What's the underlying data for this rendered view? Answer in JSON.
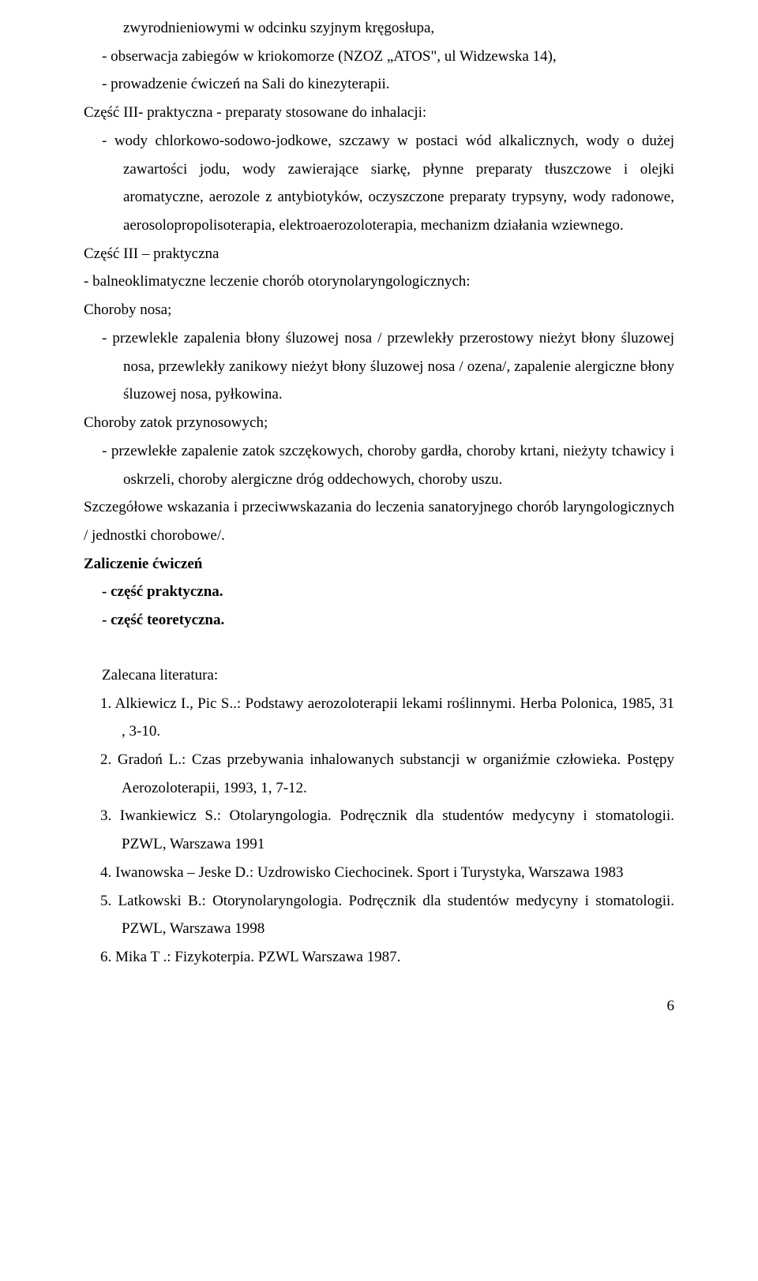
{
  "top": {
    "line1": "zwyrodnieniowymi w odcinku szyjnym kręgosłupa,",
    "bullet2": "-   obserwacja zabiegów w kriokomorze (NZOZ „ATOS\", ul Widzewska 14),",
    "bullet3": "-   prowadzenie ćwiczeń na Sali do kinezyterapii."
  },
  "paraA": "Część III- praktyczna - preparaty stosowane do inhalacji:",
  "paraA_bullet": "-   wody chlorkowo-sodowo-jodkowe, szczawy w postaci wód alkalicznych, wody o dużej zawartości jodu, wody zawierające siarkę, płynne preparaty tłuszczowe i olejki aromatyczne, aerozole z antybiotyków, oczyszczone preparaty trypsyny, wody radonowe, aerosolopropolisoterapia, elektroaerozoloterapia, mechanizm działania wziewnego.",
  "paraB_head": "Część III – praktyczna",
  "paraB_sub": "-  balneoklimatyczne leczenie chorób otorynolaryngologicznych:",
  "paraB_nose_head": "Choroby nosa;",
  "paraB_nose_bullet": "-  przewlekle zapalenia błony śluzowej  nosa / przewlekły przerostowy nieżyt błony śluzowej nosa, przewlekły zanikowy nieżyt błony śluzowej nosa / ozena/, zapalenie alergiczne błony śluzowej nosa, pyłkowina.",
  "paraB_sinus_head": "Choroby zatok przynosowych;",
  "paraB_sinus_bullet": "-  przewlekłe zapalenie zatok szczękowych, choroby gardła, choroby krtani, nieżyty tchawicy i oskrzeli, choroby alergiczne dróg oddechowych, choroby uszu.",
  "paraC": "Szczegółowe wskazania i przeciwwskazania do leczenia sanatoryjnego chorób laryngologicznych / jednostki chorobowe/.",
  "zal_head": "Zaliczenie ćwiczeń",
  "zal_a": "- część praktyczna.",
  "zal_b": "- część teoretyczna.",
  "lit_head": "Zalecana literatura:",
  "lit": {
    "i1": "1.  Alkiewicz I., Pic S..: Podstawy aerozoloterapii lekami roślinnymi. Herba Polonica, 1985, 31 , 3-10.",
    "i2": "2.  Gradoń L.: Czas przebywania inhalowanych substancji w organiźmie człowieka. Postępy Aerozoloterapii, 1993,  1, 7-12.",
    "i3": "3.  Iwankiewicz S.: Otolaryngologia. Podręcznik dla studentów medycyny i stomatologii. PZWL, Warszawa 1991",
    "i4": "4.  Iwanowska – Jeske D.: Uzdrowisko Ciechocinek. Sport i Turystyka, Warszawa 1983",
    "i5": "5.  Latkowski B.: Otorynolaryngologia. Podręcznik dla studentów medycyny i stomatologii. PZWL, Warszawa 1998",
    "i6": "6.  Mika T .:  Fizykoterpia.  PZWL Warszawa 1987."
  },
  "page_number": "6"
}
